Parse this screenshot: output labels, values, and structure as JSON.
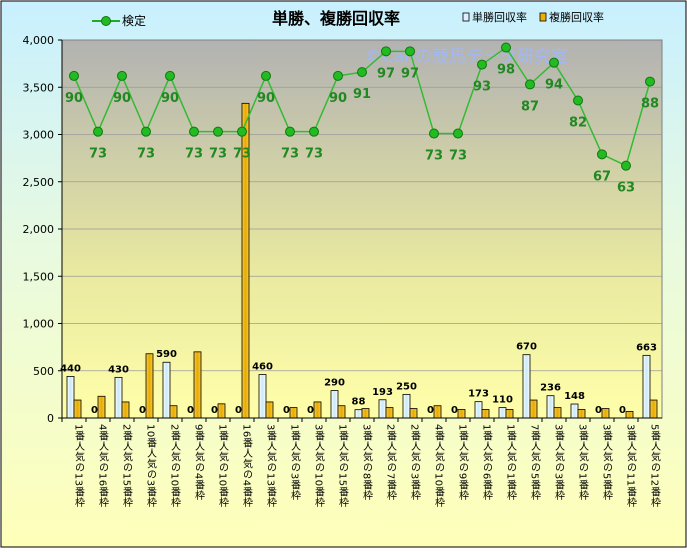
{
  "chart_data": {
    "type": "bar",
    "title": "単勝、複勝回収率",
    "watermark": "©Cahの競馬データ研究室",
    "legend_position": "top",
    "ylim": [
      0,
      4000
    ],
    "yticks": [
      "0",
      "500",
      "1,000",
      "1,500",
      "2,000",
      "2,500",
      "3,000",
      "3,500",
      "4,000"
    ],
    "ytick_values": [
      0,
      500,
      1000,
      1500,
      2000,
      2500,
      3000,
      3500,
      4000
    ],
    "categories": [
      "1番人気の13番枠",
      "4番人気の16番枠",
      "2番人気の15番枠",
      "10番人気の3番枠",
      "2番人気の10番枠",
      "9番人気の4番枠",
      "1番人気の10番枠",
      "16番人気の4番枠",
      "3番人気の13番枠",
      "1番人気の3番枠",
      "3番人気の10番枠",
      "1番人気の15番枠",
      "3番人気の8番枠",
      "2番人気の7番枠",
      "2番人気の3番枠",
      "4番人気の10番枠",
      "1番人気の9番枠",
      "1番人気の6番枠",
      "1番人気の1番枠",
      "7番人気の5番枠",
      "3番人気の3番枠",
      "3番人気の1番枠",
      "3番人気の5番枠",
      "3番人気の11番枠",
      "5番人気の12番枠"
    ],
    "series": [
      {
        "name": "検定",
        "type": "line",
        "color": "#22AA22",
        "values": [
          90,
          73,
          90,
          73,
          90,
          73,
          73,
          73,
          90,
          73,
          73,
          90,
          91,
          97,
          97,
          73,
          73,
          93,
          98,
          87,
          94,
          82,
          67,
          63,
          88
        ],
        "plot_values": [
          3620,
          3030,
          3620,
          3030,
          3620,
          3030,
          3030,
          3030,
          3620,
          3030,
          3030,
          3620,
          3660,
          3880,
          3880,
          3010,
          3010,
          3740,
          3920,
          3530,
          3760,
          3360,
          2790,
          2670,
          3560
        ]
      },
      {
        "name": "単勝回収率",
        "type": "bar",
        "color": "#DDEEFF",
        "values": [
          440,
          0,
          430,
          0,
          590,
          0,
          0,
          0,
          460,
          0,
          0,
          290,
          88,
          193,
          250,
          0,
          0,
          173,
          110,
          670,
          236,
          148,
          0,
          0,
          663
        ]
      },
      {
        "name": "複勝回収率",
        "type": "bar",
        "color": "#EEB000",
        "values": [
          190,
          230,
          170,
          680,
          130,
          700,
          150,
          3330,
          170,
          110,
          170,
          130,
          100,
          110,
          100,
          130,
          90,
          90,
          90,
          190,
          110,
          90,
          100,
          70,
          190
        ]
      }
    ],
    "grid": true,
    "colors": {
      "page_bg": "#FFFFC0",
      "plot_top": "#B4B4B4",
      "plot_bottom": "#FFFFB0",
      "line_label": "#228822"
    }
  }
}
